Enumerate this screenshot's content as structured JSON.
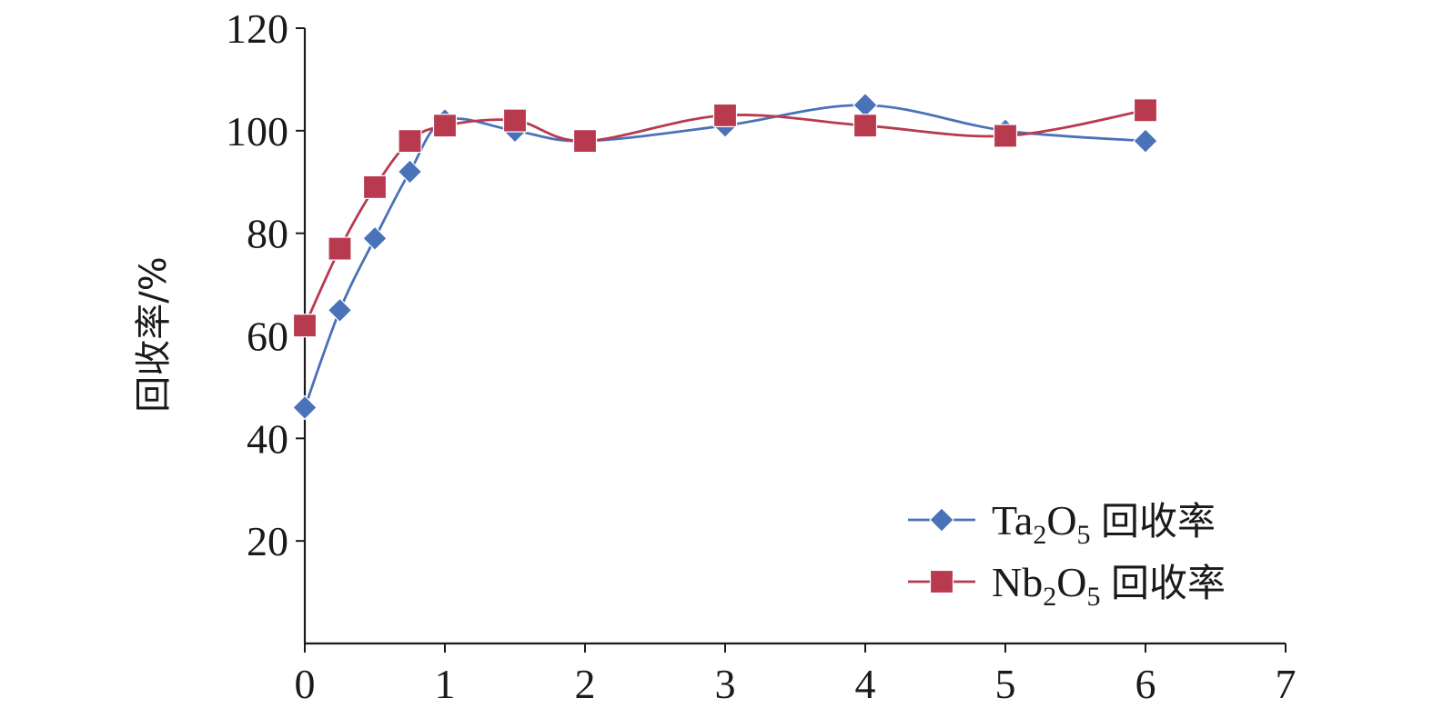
{
  "chart_data": {
    "type": "line",
    "x": [
      0,
      0.25,
      0.5,
      0.75,
      1,
      1.5,
      2,
      3,
      4,
      5,
      6
    ],
    "series": [
      {
        "key": "ta",
        "formula": "Ta",
        "sub1": "2",
        "formula_mid": "O",
        "sub2": "5",
        "suffix": "回收率",
        "color": "#4a72b8",
        "marker": "diamond",
        "values": [
          46,
          65,
          79,
          92,
          102,
          100,
          98,
          101,
          105,
          100,
          98
        ]
      },
      {
        "key": "nb",
        "formula": "Nb",
        "sub1": "2",
        "formula_mid": "O",
        "sub2": "5",
        "suffix": "回收率",
        "color": "#b83a4e",
        "marker": "square",
        "values": [
          62,
          77,
          89,
          98,
          101,
          102,
          98,
          103,
          101,
          99,
          104
        ]
      }
    ],
    "xlim": [
      0,
      7
    ],
    "ylim": [
      0,
      120
    ],
    "xticks": [
      "0",
      "1",
      "2",
      "3",
      "4",
      "5",
      "6",
      "7"
    ],
    "yticks": [
      "20",
      "40",
      "60",
      "80",
      "100",
      "120"
    ],
    "xlabel": "",
    "ylabel": "回收率/%",
    "legend_position": "bottom-right",
    "grid": false
  }
}
